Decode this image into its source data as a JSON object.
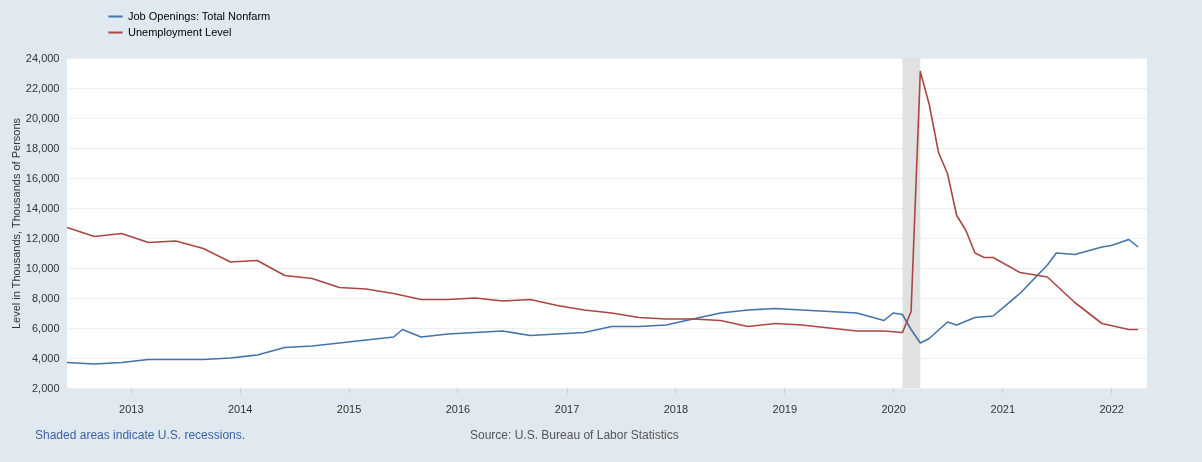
{
  "chart_data": {
    "type": "line",
    "ylabel": "Level in Thousands, Thousands of Persons",
    "annotations": [
      "Shaded areas indicate U.S. recessions.",
      "Source: U.S. Bureau of Labor Statistics"
    ],
    "xlim": [
      "2012-06",
      "2022-05"
    ],
    "xticks": [
      "2013",
      "2014",
      "2015",
      "2016",
      "2017",
      "2018",
      "2019",
      "2020",
      "2021",
      "2022"
    ],
    "ylim": [
      2000,
      24000
    ],
    "yticks": [
      {
        "value": 2000,
        "label": "2,000"
      },
      {
        "value": 4000,
        "label": "4,000"
      },
      {
        "value": 6000,
        "label": "6,000"
      },
      {
        "value": 8000,
        "label": "8,000"
      },
      {
        "value": 10000,
        "label": "10,000"
      },
      {
        "value": 12000,
        "label": "12,000"
      },
      {
        "value": 14000,
        "label": "14,000"
      },
      {
        "value": 16000,
        "label": "16,000"
      },
      {
        "value": 18000,
        "label": "18,000"
      },
      {
        "value": 20000,
        "label": "20,000"
      },
      {
        "value": 22000,
        "label": "22,000"
      },
      {
        "value": 24000,
        "label": "24,000"
      }
    ],
    "grid": "y",
    "legend": "top left",
    "bands": [
      {
        "axis": "x",
        "from": "2020-02",
        "to": "2020-04",
        "color": "#e1e1e1"
      }
    ],
    "series": [
      {
        "name": "Job Openings: Total Nonfarm",
        "color": "#4572a7",
        "x": [
          "2012-06",
          "2012-09",
          "2012-12",
          "2013-03",
          "2013-06",
          "2013-09",
          "2013-12",
          "2014-03",
          "2014-06",
          "2014-09",
          "2014-12",
          "2015-03",
          "2015-06",
          "2015-07",
          "2015-09",
          "2015-12",
          "2016-03",
          "2016-06",
          "2016-09",
          "2016-12",
          "2017-03",
          "2017-06",
          "2017-09",
          "2017-12",
          "2018-03",
          "2018-06",
          "2018-09",
          "2018-12",
          "2019-03",
          "2019-06",
          "2019-09",
          "2019-12",
          "2020-01",
          "2020-02",
          "2020-03",
          "2020-04",
          "2020-05",
          "2020-07",
          "2020-08",
          "2020-10",
          "2020-12",
          "2021-03",
          "2021-06",
          "2021-07",
          "2021-09",
          "2021-12",
          "2022-01",
          "2022-03",
          "2022-04"
        ],
        "values": [
          3700,
          3600,
          3700,
          3900,
          3900,
          3900,
          4000,
          4200,
          4700,
          4800,
          5000,
          5200,
          5400,
          5900,
          5400,
          5600,
          5700,
          5800,
          5500,
          5600,
          5700,
          6100,
          6100,
          6200,
          6600,
          7000,
          7200,
          7300,
          7200,
          7100,
          7000,
          6500,
          7000,
          6900,
          5900,
          5000,
          5300,
          6400,
          6200,
          6700,
          6800,
          8300,
          10200,
          11000,
          10900,
          11400,
          11500,
          11900,
          11400
        ]
      },
      {
        "name": "Unemployment Level",
        "color": "#aa4643",
        "x": [
          "2012-06",
          "2012-09",
          "2012-12",
          "2013-03",
          "2013-06",
          "2013-09",
          "2013-12",
          "2014-03",
          "2014-06",
          "2014-09",
          "2014-12",
          "2015-03",
          "2015-06",
          "2015-09",
          "2015-12",
          "2016-03",
          "2016-06",
          "2016-09",
          "2016-12",
          "2017-03",
          "2017-06",
          "2017-09",
          "2017-12",
          "2018-03",
          "2018-06",
          "2018-09",
          "2018-12",
          "2019-03",
          "2019-06",
          "2019-09",
          "2019-12",
          "2020-02",
          "2020-03",
          "2020-04",
          "2020-05",
          "2020-06",
          "2020-07",
          "2020-08",
          "2020-09",
          "2020-10",
          "2020-11",
          "2020-12",
          "2021-03",
          "2021-06",
          "2021-09",
          "2021-12",
          "2022-03",
          "2022-04"
        ],
        "values": [
          12700,
          12100,
          12300,
          11700,
          11800,
          11300,
          10400,
          10500,
          9500,
          9300,
          8700,
          8600,
          8300,
          7900,
          7900,
          8000,
          7800,
          7900,
          7500,
          7200,
          7000,
          6700,
          6600,
          6600,
          6500,
          6100,
          6300,
          6200,
          6000,
          5800,
          5800,
          5700,
          7100,
          23100,
          20900,
          17700,
          16300,
          13500,
          12500,
          11000,
          10700,
          10700,
          9700,
          9400,
          7700,
          6300,
          5900,
          5900
        ]
      }
    ]
  }
}
